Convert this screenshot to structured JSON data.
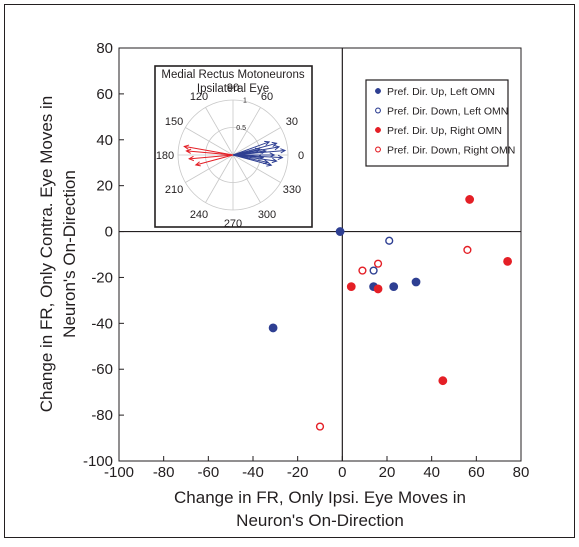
{
  "chart_data": {
    "type": "scatter",
    "title": "",
    "xlabel_lines": [
      "Change in FR, Only Ipsi. Eye Moves in",
      "Neuron's On-Direction"
    ],
    "ylabel_lines": [
      "Change in FR, Only Contra. Eye Moves in",
      "Neuron's On-Direction"
    ],
    "xlim": [
      -100,
      80
    ],
    "ylim": [
      -100,
      80
    ],
    "xticks": [
      "-100",
      "-80",
      "-60",
      "-40",
      "-20",
      "0",
      "20",
      "40",
      "60",
      "80"
    ],
    "yticks": [
      "-100",
      "-80",
      "-60",
      "-40",
      "-20",
      "0",
      "20",
      "40",
      "60",
      "80"
    ],
    "grid": false,
    "reference_lines": {
      "x": 0,
      "y": 0
    },
    "legend_position": "top-right",
    "series": [
      {
        "name": "Pref. Dir. Up, Left OMN",
        "color": "#2e3f92",
        "marker": "filled-circle",
        "points": [
          [
            -31,
            -42
          ],
          [
            -1,
            0
          ],
          [
            14,
            -24
          ],
          [
            23,
            -24
          ],
          [
            33,
            -22
          ]
        ]
      },
      {
        "name": "Pref. Dir. Down, Left OMN",
        "color": "#2e3f92",
        "marker": "open-circle",
        "points": [
          [
            14,
            -17
          ],
          [
            21,
            -4
          ]
        ]
      },
      {
        "name": "Pref. Dir. Up, Right OMN",
        "color": "#e41f26",
        "marker": "filled-circle",
        "points": [
          [
            4,
            -24
          ],
          [
            16,
            -25
          ],
          [
            45,
            -65
          ],
          [
            57,
            14
          ],
          [
            74,
            -13
          ]
        ]
      },
      {
        "name": "Pref. Dir. Down, Right OMN",
        "color": "#e41f26",
        "marker": "open-circle",
        "points": [
          [
            -10,
            -85
          ],
          [
            9,
            -17
          ],
          [
            16,
            -14
          ],
          [
            56,
            -8
          ]
        ]
      }
    ],
    "inset": {
      "type": "polar",
      "title_lines": [
        "Medial Rectus Motoneurons",
        "Ipsilateral Eye"
      ],
      "angle_labels": [
        "0",
        "30",
        "60",
        "90",
        "120",
        "150",
        "180",
        "210",
        "240",
        "270",
        "300",
        "330"
      ],
      "radius_labels": [
        "0.5",
        "1"
      ],
      "rmax": 1,
      "series": [
        {
          "color": "#2e3f92",
          "vectors": [
            [
              5,
              0.95
            ],
            [
              -3,
              0.9
            ],
            [
              10,
              0.85
            ],
            [
              -8,
              0.8
            ],
            [
              15,
              0.82
            ],
            [
              0,
              0.75
            ],
            [
              20,
              0.7
            ],
            [
              -12,
              0.65
            ],
            [
              7,
              0.6
            ],
            [
              -5,
              0.55
            ],
            [
              12,
              0.5
            ],
            [
              -15,
              0.72
            ]
          ]
        },
        {
          "color": "#e41f26",
          "vectors": [
            [
              170,
              0.9
            ],
            [
              185,
              0.8
            ],
            [
              175,
              0.85
            ],
            [
              195,
              0.7
            ]
          ]
        }
      ]
    }
  }
}
